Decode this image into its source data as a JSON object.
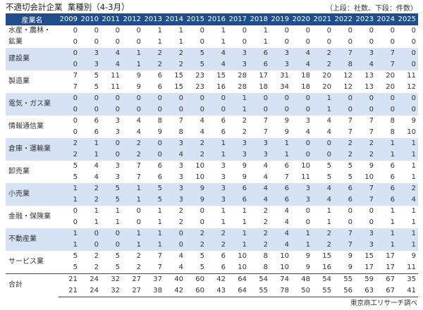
{
  "header": {
    "title": "不適切会計企業  業種別（4-3月）",
    "note": "（上段：社数、下段：件数）"
  },
  "table": {
    "industry_header": "産業名",
    "years": [
      "2009",
      "2010",
      "2011",
      "2012",
      "2013",
      "2014",
      "2015",
      "2016",
      "2017",
      "2018",
      "2019",
      "2020",
      "2021",
      "2022",
      "2023",
      "2024",
      "2025"
    ],
    "rows": [
      {
        "name": "水産・農林・鉱業",
        "shaded": false,
        "companies": [
          0,
          0,
          0,
          0,
          1,
          1,
          0,
          1,
          0,
          1,
          0,
          0,
          0,
          0,
          0,
          0,
          0
        ],
        "cases": [
          0,
          0,
          0,
          0,
          1,
          1,
          0,
          1,
          0,
          1,
          0,
          0,
          0,
          0,
          0,
          0,
          0
        ]
      },
      {
        "name": "建設業",
        "shaded": true,
        "companies": [
          0,
          3,
          4,
          1,
          2,
          2,
          5,
          4,
          3,
          6,
          3,
          4,
          2,
          7,
          3,
          7,
          0
        ],
        "cases": [
          0,
          3,
          4,
          1,
          2,
          2,
          5,
          4,
          3,
          6,
          3,
          4,
          2,
          8,
          4,
          7,
          0
        ]
      },
      {
        "name": "製造業",
        "shaded": false,
        "companies": [
          7,
          5,
          11,
          9,
          6,
          15,
          23,
          15,
          28,
          17,
          31,
          18,
          20,
          12,
          13,
          20,
          11
        ],
        "cases": [
          7,
          5,
          11,
          9,
          6,
          15,
          23,
          16,
          28,
          18,
          34,
          18,
          20,
          12,
          13,
          20,
          12
        ]
      },
      {
        "name": "電気・ガス業",
        "shaded": true,
        "companies": [
          0,
          0,
          0,
          0,
          0,
          0,
          0,
          0,
          1,
          0,
          0,
          0,
          1,
          0,
          0,
          0,
          0
        ],
        "cases": [
          0,
          0,
          0,
          0,
          0,
          0,
          0,
          0,
          1,
          0,
          0,
          0,
          1,
          0,
          0,
          0,
          0
        ]
      },
      {
        "name": "情報通信業",
        "shaded": false,
        "companies": [
          0,
          6,
          3,
          4,
          8,
          7,
          4,
          6,
          2,
          7,
          9,
          3,
          4,
          7,
          7,
          8,
          9
        ],
        "cases": [
          0,
          6,
          3,
          4,
          9,
          8,
          4,
          6,
          2,
          7,
          9,
          4,
          4,
          7,
          7,
          8,
          10
        ]
      },
      {
        "name": "倉庫・運輸業",
        "shaded": true,
        "companies": [
          2,
          1,
          0,
          2,
          0,
          3,
          2,
          1,
          3,
          3,
          1,
          0,
          0,
          2,
          2,
          1,
          1
        ],
        "cases": [
          2,
          1,
          0,
          2,
          0,
          4,
          2,
          1,
          3,
          3,
          1,
          0,
          0,
          2,
          2,
          1,
          1
        ]
      },
      {
        "name": "卸売業",
        "shaded": false,
        "companies": [
          5,
          4,
          3,
          7,
          6,
          3,
          10,
          3,
          9,
          4,
          6,
          10,
          5,
          5,
          9,
          6,
          1
        ],
        "cases": [
          5,
          4,
          3,
          7,
          6,
          3,
          10,
          3,
          9,
          4,
          7,
          11,
          5,
          5,
          10,
          6,
          1
        ]
      },
      {
        "name": "小売業",
        "shaded": true,
        "companies": [
          1,
          2,
          5,
          1,
          5,
          3,
          9,
          3,
          6,
          4,
          6,
          3,
          4,
          6,
          7,
          6,
          2
        ],
        "cases": [
          1,
          2,
          5,
          1,
          5,
          3,
          9,
          3,
          6,
          4,
          6,
          3,
          4,
          6,
          7,
          6,
          4
        ]
      },
      {
        "name": "金融・保険業",
        "shaded": false,
        "companies": [
          0,
          1,
          1,
          0,
          1,
          2,
          0,
          1,
          1,
          2,
          4,
          0,
          1,
          0,
          0,
          1,
          1
        ],
        "cases": [
          0,
          1,
          1,
          0,
          1,
          2,
          0,
          1,
          1,
          2,
          4,
          0,
          1,
          0,
          0,
          1,
          1
        ]
      },
      {
        "name": "不動産業",
        "shaded": true,
        "companies": [
          1,
          0,
          0,
          1,
          1,
          0,
          2,
          2,
          1,
          2,
          4,
          1,
          2,
          7,
          3,
          1,
          1
        ],
        "cases": [
          1,
          0,
          0,
          1,
          1,
          0,
          2,
          2,
          1,
          2,
          4,
          1,
          2,
          7,
          3,
          1,
          1
        ]
      },
      {
        "name": "サービス業",
        "shaded": false,
        "companies": [
          5,
          2,
          5,
          2,
          7,
          4,
          5,
          6,
          10,
          8,
          10,
          9,
          15,
          9,
          15,
          17,
          9
        ],
        "cases": [
          5,
          2,
          5,
          2,
          7,
          4,
          5,
          6,
          10,
          8,
          10,
          9,
          16,
          9,
          17,
          17,
          11
        ]
      }
    ],
    "total": {
      "name": "合計",
      "companies": [
        21,
        24,
        32,
        27,
        37,
        40,
        60,
        42,
        64,
        54,
        74,
        48,
        54,
        55,
        59,
        67,
        35
      ],
      "cases": [
        21,
        24,
        32,
        27,
        38,
        42,
        60,
        43,
        64,
        55,
        78,
        50,
        55,
        56,
        63,
        67,
        41
      ]
    }
  },
  "footer": {
    "source": "東京商工リサーチ調べ"
  },
  "colors": {
    "header_bg": "#1e4f8c",
    "header_text": "#ffffff",
    "shade_row": "#d5e3f5"
  }
}
